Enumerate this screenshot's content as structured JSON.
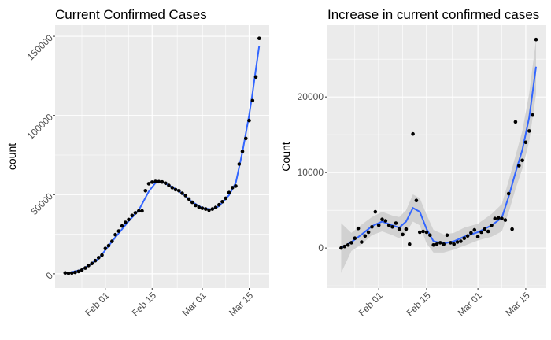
{
  "chart_data": [
    {
      "type": "scatter",
      "title": "Current Confirmed Cases",
      "xlabel": "",
      "ylabel": "count",
      "x_tick_labels": [
        "Feb 01",
        "Feb 15",
        "Mar 01",
        "Mar 15"
      ],
      "x_ticks": [
        "2020-02-01",
        "2020-02-15",
        "2020-03-01",
        "2020-03-15"
      ],
      "xlim": [
        "2020-01-17",
        "2020-03-21"
      ],
      "y_tick_labels": [
        "0",
        "50000",
        "100000",
        "150000"
      ],
      "y_ticks": [
        0,
        50000,
        100000,
        150000
      ],
      "ylim": [
        -9000,
        157000
      ],
      "grid": true,
      "background": "#EBEBEB",
      "point_color": "#000000",
      "smooth_color": "#3366FF",
      "points": [
        {
          "x": "2020-01-20",
          "y": 600
        },
        {
          "x": "2020-01-21",
          "y": 300
        },
        {
          "x": "2020-01-22",
          "y": 500
        },
        {
          "x": "2020-01-23",
          "y": 900
        },
        {
          "x": "2020-01-24",
          "y": 1500
        },
        {
          "x": "2020-01-25",
          "y": 2300
        },
        {
          "x": "2020-01-26",
          "y": 3600
        },
        {
          "x": "2020-01-27",
          "y": 5200
        },
        {
          "x": "2020-01-28",
          "y": 6500
        },
        {
          "x": "2020-01-29",
          "y": 8300
        },
        {
          "x": "2020-01-30",
          "y": 10200
        },
        {
          "x": "2020-01-31",
          "y": 11800
        },
        {
          "x": "2020-02-01",
          "y": 16000
        },
        {
          "x": "2020-02-02",
          "y": 17800
        },
        {
          "x": "2020-02-03",
          "y": 20500
        },
        {
          "x": "2020-02-04",
          "y": 24700
        },
        {
          "x": "2020-02-05",
          "y": 27000
        },
        {
          "x": "2020-02-06",
          "y": 30200
        },
        {
          "x": "2020-02-07",
          "y": 32500
        },
        {
          "x": "2020-02-08",
          "y": 34300
        },
        {
          "x": "2020-02-09",
          "y": 36800
        },
        {
          "x": "2020-02-10",
          "y": 38500
        },
        {
          "x": "2020-02-11",
          "y": 39700
        },
        {
          "x": "2020-02-12",
          "y": 39700
        },
        {
          "x": "2020-02-13",
          "y": 52500
        },
        {
          "x": "2020-02-14",
          "y": 56900
        },
        {
          "x": "2020-02-15",
          "y": 57900
        },
        {
          "x": "2020-02-16",
          "y": 58300
        },
        {
          "x": "2020-02-17",
          "y": 58200
        },
        {
          "x": "2020-02-18",
          "y": 58000
        },
        {
          "x": "2020-02-19",
          "y": 57200
        },
        {
          "x": "2020-02-20",
          "y": 55800
        },
        {
          "x": "2020-02-21",
          "y": 54400
        },
        {
          "x": "2020-02-22",
          "y": 53200
        },
        {
          "x": "2020-02-23",
          "y": 52500
        },
        {
          "x": "2020-02-24",
          "y": 50900
        },
        {
          "x": "2020-02-25",
          "y": 49400
        },
        {
          "x": "2020-02-26",
          "y": 47200
        },
        {
          "x": "2020-02-27",
          "y": 45100
        },
        {
          "x": "2020-02-28",
          "y": 43200
        },
        {
          "x": "2020-02-29",
          "y": 42000
        },
        {
          "x": "2020-03-01",
          "y": 41400
        },
        {
          "x": "2020-03-02",
          "y": 40900
        },
        {
          "x": "2020-03-03",
          "y": 40200
        },
        {
          "x": "2020-03-04",
          "y": 40900
        },
        {
          "x": "2020-03-05",
          "y": 41900
        },
        {
          "x": "2020-03-06",
          "y": 43600
        },
        {
          "x": "2020-03-07",
          "y": 45500
        },
        {
          "x": "2020-03-08",
          "y": 47700
        },
        {
          "x": "2020-03-09",
          "y": 51300
        },
        {
          "x": "2020-03-10",
          "y": 54400
        },
        {
          "x": "2020-03-11",
          "y": 55400
        },
        {
          "x": "2020-03-12",
          "y": 69300
        },
        {
          "x": "2020-03-13",
          "y": 77300
        },
        {
          "x": "2020-03-14",
          "y": 85500
        },
        {
          "x": "2020-03-15",
          "y": 96800
        },
        {
          "x": "2020-03-16",
          "y": 109400
        },
        {
          "x": "2020-03-17",
          "y": 124300
        },
        {
          "x": "2020-03-18",
          "y": 148700
        }
      ],
      "smooth": [
        {
          "x": "2020-01-20",
          "y": 200
        },
        {
          "x": "2020-01-25",
          "y": 2600
        },
        {
          "x": "2020-01-30",
          "y": 9600
        },
        {
          "x": "2020-02-04",
          "y": 23000
        },
        {
          "x": "2020-02-08",
          "y": 33300
        },
        {
          "x": "2020-02-11",
          "y": 40200
        },
        {
          "x": "2020-02-14",
          "y": 52000
        },
        {
          "x": "2020-02-16",
          "y": 57400
        },
        {
          "x": "2020-02-18",
          "y": 58000
        },
        {
          "x": "2020-02-21",
          "y": 54800
        },
        {
          "x": "2020-02-24",
          "y": 50800
        },
        {
          "x": "2020-02-27",
          "y": 45300
        },
        {
          "x": "2020-03-01",
          "y": 41600
        },
        {
          "x": "2020-03-04",
          "y": 40600
        },
        {
          "x": "2020-03-06",
          "y": 42800
        },
        {
          "x": "2020-03-09",
          "y": 49700
        },
        {
          "x": "2020-03-11",
          "y": 57400
        },
        {
          "x": "2020-03-13",
          "y": 77000
        },
        {
          "x": "2020-03-15",
          "y": 100200
        },
        {
          "x": "2020-03-16",
          "y": 114000
        },
        {
          "x": "2020-03-17",
          "y": 129000
        },
        {
          "x": "2020-03-18",
          "y": 144000
        }
      ]
    },
    {
      "type": "scatter",
      "title": "Increase in current confirmed cases",
      "xlabel": "",
      "ylabel": "Count",
      "x_tick_labels": [
        "Feb 01",
        "Feb 15",
        "Mar 01",
        "Mar 15"
      ],
      "x_ticks": [
        "2020-02-01",
        "2020-02-15",
        "2020-03-01",
        "2020-03-15"
      ],
      "xlim": [
        "2020-01-17",
        "2020-03-21"
      ],
      "y_tick_labels": [
        "0",
        "10000",
        "20000"
      ],
      "y_ticks": [
        0,
        10000,
        20000
      ],
      "ylim": [
        -5300,
        29500
      ],
      "grid": true,
      "background": "#EBEBEB",
      "point_color": "#000000",
      "smooth_color": "#3366FF",
      "ribbon_color": "#CCCCCC",
      "points": [
        {
          "x": "2020-01-21",
          "y": 0
        },
        {
          "x": "2020-01-22",
          "y": 200
        },
        {
          "x": "2020-01-23",
          "y": 400
        },
        {
          "x": "2020-01-24",
          "y": 700
        },
        {
          "x": "2020-01-25",
          "y": 1300
        },
        {
          "x": "2020-01-26",
          "y": 2600
        },
        {
          "x": "2020-01-27",
          "y": 800
        },
        {
          "x": "2020-01-28",
          "y": 1600
        },
        {
          "x": "2020-01-29",
          "y": 2100
        },
        {
          "x": "2020-01-30",
          "y": 2800
        },
        {
          "x": "2020-01-31",
          "y": 4800
        },
        {
          "x": "2020-02-01",
          "y": 3000
        },
        {
          "x": "2020-02-02",
          "y": 3800
        },
        {
          "x": "2020-02-03",
          "y": 3600
        },
        {
          "x": "2020-02-04",
          "y": 3000
        },
        {
          "x": "2020-02-05",
          "y": 2800
        },
        {
          "x": "2020-02-06",
          "y": 3300
        },
        {
          "x": "2020-02-07",
          "y": 2500
        },
        {
          "x": "2020-02-08",
          "y": 1800
        },
        {
          "x": "2020-02-09",
          "y": 2500
        },
        {
          "x": "2020-02-10",
          "y": 500
        },
        {
          "x": "2020-02-11",
          "y": 15100
        },
        {
          "x": "2020-02-12",
          "y": 6300
        },
        {
          "x": "2020-02-13",
          "y": 2100
        },
        {
          "x": "2020-02-14",
          "y": 2200
        },
        {
          "x": "2020-02-15",
          "y": 2100
        },
        {
          "x": "2020-02-16",
          "y": 1700
        },
        {
          "x": "2020-02-17",
          "y": 400
        },
        {
          "x": "2020-02-18",
          "y": 500
        },
        {
          "x": "2020-02-19",
          "y": 700
        },
        {
          "x": "2020-02-20",
          "y": 500
        },
        {
          "x": "2020-02-21",
          "y": 1700
        },
        {
          "x": "2020-02-22",
          "y": 700
        },
        {
          "x": "2020-02-23",
          "y": 500
        },
        {
          "x": "2020-02-24",
          "y": 800
        },
        {
          "x": "2020-02-25",
          "y": 900
        },
        {
          "x": "2020-02-26",
          "y": 1300
        },
        {
          "x": "2020-02-27",
          "y": 1600
        },
        {
          "x": "2020-02-28",
          "y": 2000
        },
        {
          "x": "2020-02-29",
          "y": 2400
        },
        {
          "x": "2020-03-01",
          "y": 1500
        },
        {
          "x": "2020-03-02",
          "y": 2100
        },
        {
          "x": "2020-03-03",
          "y": 2500
        },
        {
          "x": "2020-03-04",
          "y": 2200
        },
        {
          "x": "2020-03-05",
          "y": 3000
        },
        {
          "x": "2020-03-06",
          "y": 3900
        },
        {
          "x": "2020-03-07",
          "y": 4000
        },
        {
          "x": "2020-03-08",
          "y": 3900
        },
        {
          "x": "2020-03-09",
          "y": 3700
        },
        {
          "x": "2020-03-10",
          "y": 7200
        },
        {
          "x": "2020-03-11",
          "y": 2500
        },
        {
          "x": "2020-03-12",
          "y": 16700
        },
        {
          "x": "2020-03-13",
          "y": 10900
        },
        {
          "x": "2020-03-14",
          "y": 11600
        },
        {
          "x": "2020-03-15",
          "y": 14000
        },
        {
          "x": "2020-03-16",
          "y": 15500
        },
        {
          "x": "2020-03-17",
          "y": 17600
        },
        {
          "x": "2020-03-18",
          "y": 27600
        }
      ],
      "smooth": [
        {
          "x": "2020-01-21",
          "y": 0
        },
        {
          "x": "2020-01-24",
          "y": 800
        },
        {
          "x": "2020-01-27",
          "y": 1800
        },
        {
          "x": "2020-01-30",
          "y": 2900
        },
        {
          "x": "2020-02-02",
          "y": 3500
        },
        {
          "x": "2020-02-05",
          "y": 3000
        },
        {
          "x": "2020-02-07",
          "y": 2700
        },
        {
          "x": "2020-02-09",
          "y": 3500
        },
        {
          "x": "2020-02-11",
          "y": 5300
        },
        {
          "x": "2020-02-13",
          "y": 4800
        },
        {
          "x": "2020-02-15",
          "y": 2500
        },
        {
          "x": "2020-02-17",
          "y": 900
        },
        {
          "x": "2020-02-20",
          "y": 600
        },
        {
          "x": "2020-02-23",
          "y": 900
        },
        {
          "x": "2020-02-26",
          "y": 1500
        },
        {
          "x": "2020-03-01",
          "y": 2100
        },
        {
          "x": "2020-03-05",
          "y": 3000
        },
        {
          "x": "2020-03-08",
          "y": 4000
        },
        {
          "x": "2020-03-10",
          "y": 6800
        },
        {
          "x": "2020-03-12",
          "y": 10000
        },
        {
          "x": "2020-03-14",
          "y": 13000
        },
        {
          "x": "2020-03-16",
          "y": 17300
        },
        {
          "x": "2020-03-18",
          "y": 24000
        }
      ],
      "ribbon_halfwidth": [
        3300,
        1200,
        1300,
        1200,
        1300,
        1300,
        1400,
        1500,
        1800,
        1800,
        1900,
        1500,
        1200,
        1100,
        1200,
        1100,
        1500,
        1800,
        2100,
        2200,
        2500,
        3200,
        3600
      ]
    }
  ]
}
